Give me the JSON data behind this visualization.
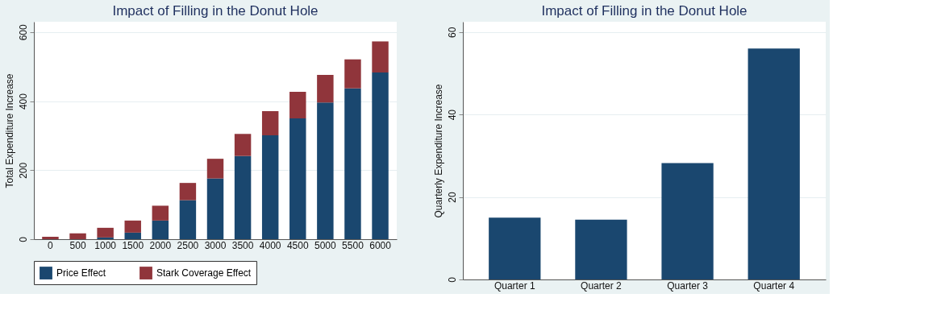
{
  "chart_data": [
    {
      "type": "bar",
      "title": "Impact of Filling in the Donut Hole",
      "ylabel": "Total Expenditure Increase",
      "categories": [
        "0",
        "500",
        "1000",
        "1500",
        "2000",
        "2500",
        "3000",
        "3500",
        "4000",
        "4500",
        "5000",
        "5500",
        "6000"
      ],
      "stacked": true,
      "ylim": [
        0,
        630
      ],
      "yticks": [
        0,
        200,
        400,
        600
      ],
      "grid": "y",
      "legend": "bottom",
      "series": [
        {
          "name": "Price Effect",
          "color": "#1a476f",
          "values": [
            0,
            0,
            5,
            19,
            54,
            113,
            176,
            241,
            301,
            350,
            396,
            437,
            483
          ]
        },
        {
          "name": "Stark Coverage Effect",
          "color": "#90353b",
          "values": [
            7,
            17,
            28,
            35,
            43,
            50,
            57,
            64,
            70,
            77,
            80,
            84,
            90
          ]
        }
      ]
    },
    {
      "type": "bar",
      "title": "Impact of Filling in the Donut Hole",
      "ylabel": "Quarterly Expenditure Increase",
      "categories": [
        "Quarter 1",
        "Quarter 2",
        "Quarter 3",
        "Quarter 4"
      ],
      "values": [
        15.0,
        14.5,
        28.2,
        56.0
      ],
      "color": "#1a476f",
      "ylim": [
        0,
        62.5
      ],
      "yticks": [
        0,
        20,
        40,
        60
      ],
      "grid": "y"
    }
  ]
}
